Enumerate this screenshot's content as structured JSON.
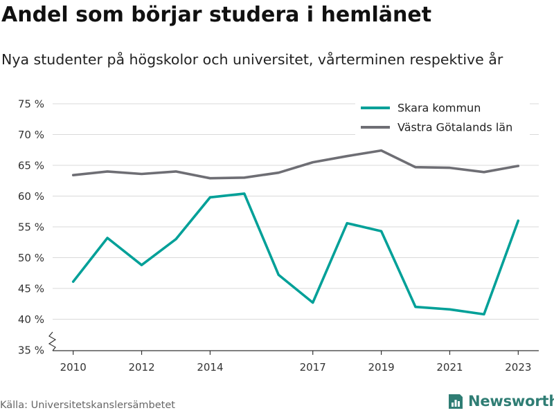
{
  "title": "Andel som börjar studera i hemlänet",
  "subtitle": "Nya studenter på högskolor och universitet, vårterminen respektive år",
  "source": "Källa: Universitetskanslersämbetet",
  "logo_text": "Newsworthy",
  "colors": {
    "skara": "#00a098",
    "vgl": "#6e6e74",
    "grid": "#d9d9d9",
    "axis": "#333333",
    "logo": "#2f7d74"
  },
  "chart_data": {
    "type": "line",
    "x": [
      2010,
      2011,
      2012,
      2013,
      2014,
      2015,
      2016,
      2017,
      2018,
      2019,
      2020,
      2021,
      2022,
      2023
    ],
    "series": [
      {
        "name": "Skara kommun",
        "color": "#00a098",
        "values": [
          46.1,
          53.2,
          48.8,
          53.0,
          59.8,
          60.4,
          47.2,
          42.7,
          55.6,
          54.3,
          42.0,
          41.6,
          40.8,
          56.0
        ]
      },
      {
        "name": "Västra Götalands län",
        "color": "#6e6e74",
        "values": [
          63.4,
          64.0,
          63.6,
          64.0,
          62.9,
          63.0,
          63.8,
          65.5,
          66.5,
          67.4,
          64.7,
          64.6,
          63.9,
          64.9
        ]
      }
    ],
    "ylim": [
      35,
      75
    ],
    "yticks": [
      35,
      40,
      45,
      50,
      55,
      60,
      65,
      70,
      75
    ],
    "ytick_labels": [
      "35 %",
      "40 %",
      "45 %",
      "50 %",
      "55 %",
      "60 %",
      "65 %",
      "70 %",
      "75 %"
    ],
    "xticks": [
      2010,
      2012,
      2014,
      2017,
      2019,
      2021,
      2023
    ],
    "xtick_labels": [
      "2010",
      "2012",
      "2014",
      "2017",
      "2019",
      "2021",
      "2023"
    ],
    "xlim": [
      2009.4,
      2023.6
    ],
    "grid": true,
    "legend": "top-right",
    "y_axis_break": true
  }
}
